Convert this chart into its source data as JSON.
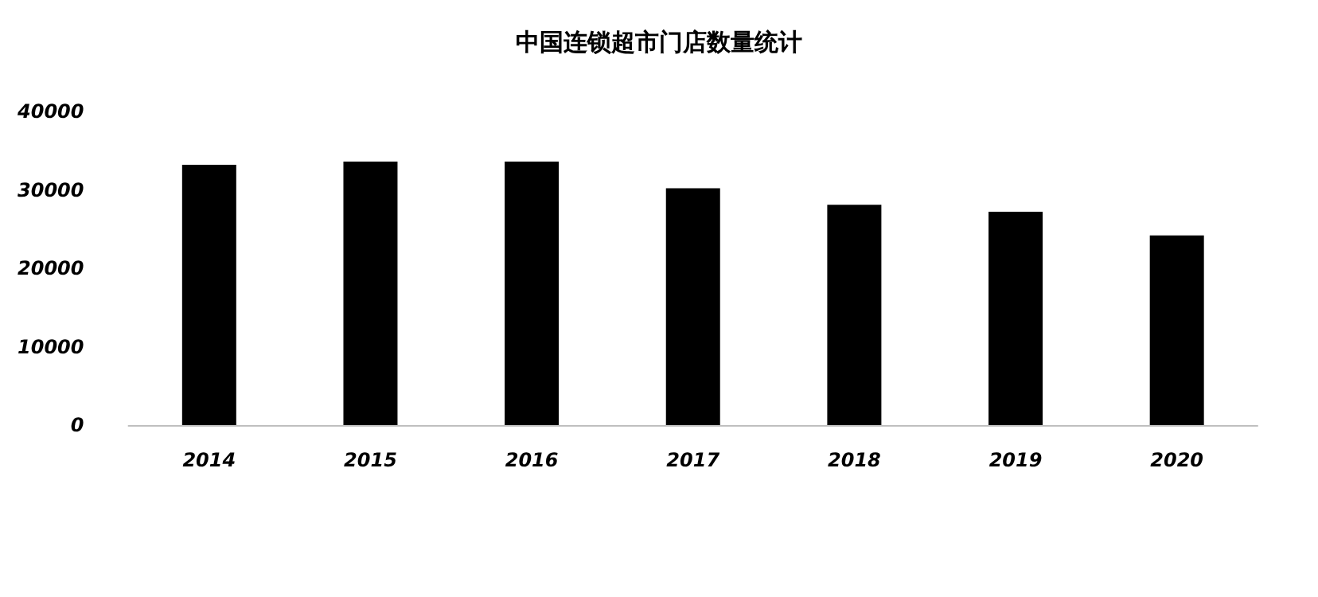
{
  "chart_data": {
    "type": "bar",
    "title": "中国连锁超市门店数量统计",
    "categories": [
      "2014",
      "2015",
      "2016",
      "2017",
      "2018",
      "2019",
      "2020"
    ],
    "values": [
      33200,
      33600,
      33600,
      30200,
      28100,
      27200,
      24200
    ],
    "color": "#000000",
    "ylim": [
      0,
      40000
    ],
    "yticks": [
      0,
      10000,
      20000,
      30000,
      40000
    ],
    "grid": false
  }
}
